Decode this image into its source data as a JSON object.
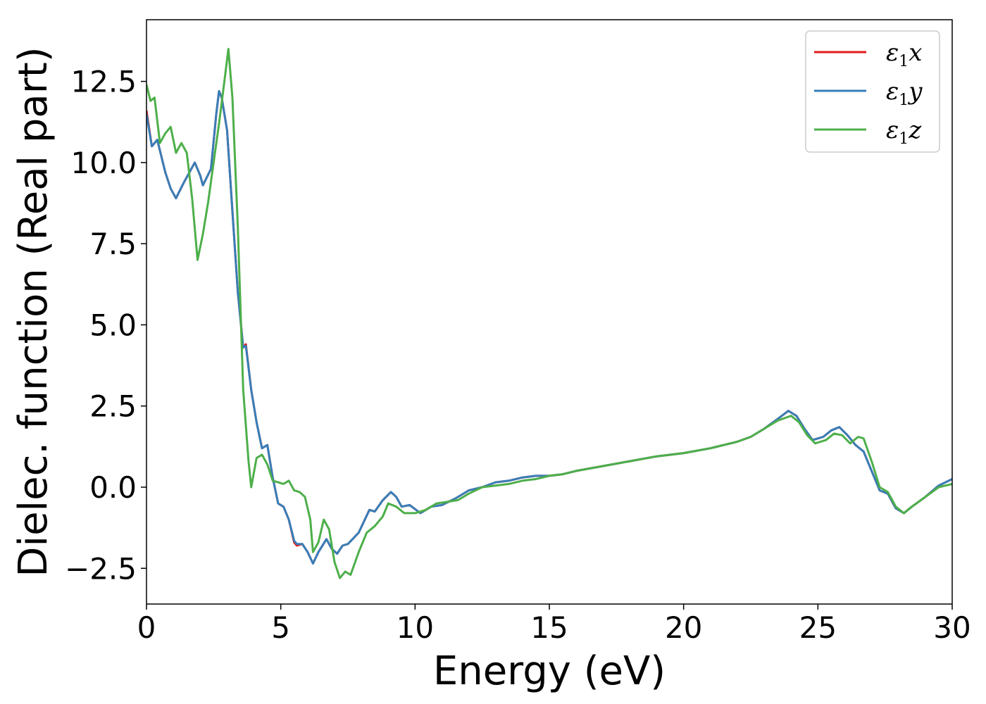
{
  "chart_data": {
    "type": "line",
    "title": "",
    "xlabel": "Energy (eV)",
    "ylabel": "Dielec. function (Real part)",
    "xlim": [
      0,
      30
    ],
    "ylim": [
      -3.6,
      14.4
    ],
    "xticks": [
      0,
      5,
      10,
      15,
      20,
      25,
      30
    ],
    "xtick_labels": [
      "0",
      "5",
      "10",
      "15",
      "20",
      "25",
      "30"
    ],
    "yticks": [
      -2.5,
      0.0,
      2.5,
      5.0,
      7.5,
      10.0,
      12.5
    ],
    "ytick_labels": [
      "−2.5",
      "0.0",
      "2.5",
      "5.0",
      "7.5",
      "10.0",
      "12.5"
    ],
    "grid": false,
    "legend_position": "top-right",
    "series": [
      {
        "name": "x",
        "color": "#e41a1c",
        "points": [
          [
            0,
            11.6
          ],
          [
            0.2,
            10.5
          ],
          [
            0.4,
            10.7
          ],
          [
            0.7,
            9.7
          ],
          [
            0.9,
            9.2
          ],
          [
            1.1,
            8.9
          ],
          [
            1.4,
            9.4
          ],
          [
            1.8,
            10.0
          ],
          [
            2.0,
            9.6
          ],
          [
            2.1,
            9.3
          ],
          [
            2.4,
            9.8
          ],
          [
            2.6,
            11.5
          ],
          [
            2.7,
            12.2
          ],
          [
            2.8,
            12.0
          ],
          [
            3.0,
            11.0
          ],
          [
            3.2,
            8.5
          ],
          [
            3.4,
            6.0
          ],
          [
            3.6,
            4.3
          ],
          [
            3.7,
            4.4
          ],
          [
            3.9,
            3.0
          ],
          [
            4.1,
            2.0
          ],
          [
            4.3,
            1.2
          ],
          [
            4.5,
            1.3
          ],
          [
            4.7,
            0.3
          ],
          [
            4.9,
            -0.5
          ],
          [
            5.1,
            -0.6
          ],
          [
            5.3,
            -1.0
          ],
          [
            5.5,
            -1.7
          ],
          [
            5.6,
            -1.8
          ],
          [
            5.8,
            -1.75
          ],
          [
            6.0,
            -2.0
          ],
          [
            6.2,
            -2.35
          ],
          [
            6.4,
            -2.0
          ],
          [
            6.7,
            -1.6
          ],
          [
            6.9,
            -1.9
          ],
          [
            7.1,
            -2.05
          ],
          [
            7.3,
            -1.8
          ],
          [
            7.5,
            -1.75
          ],
          [
            7.9,
            -1.4
          ],
          [
            8.3,
            -0.7
          ],
          [
            8.5,
            -0.75
          ],
          [
            8.8,
            -0.4
          ],
          [
            9.1,
            -0.15
          ],
          [
            9.3,
            -0.3
          ],
          [
            9.5,
            -0.6
          ],
          [
            9.8,
            -0.55
          ],
          [
            10.2,
            -0.8
          ],
          [
            10.6,
            -0.6
          ],
          [
            11.0,
            -0.55
          ],
          [
            11.5,
            -0.35
          ],
          [
            12.0,
            -0.1
          ],
          [
            12.5,
            0.0
          ],
          [
            13.0,
            0.15
          ],
          [
            13.5,
            0.2
          ],
          [
            14.0,
            0.3
          ],
          [
            14.5,
            0.35
          ],
          [
            15.0,
            0.35
          ],
          [
            15.5,
            0.4
          ],
          [
            16.0,
            0.5
          ],
          [
            17.0,
            0.65
          ],
          [
            18.0,
            0.8
          ],
          [
            19.0,
            0.95
          ],
          [
            20.0,
            1.05
          ],
          [
            21.0,
            1.2
          ],
          [
            22.0,
            1.4
          ],
          [
            22.5,
            1.55
          ],
          [
            23.0,
            1.8
          ],
          [
            23.5,
            2.1
          ],
          [
            23.9,
            2.35
          ],
          [
            24.2,
            2.2
          ],
          [
            24.5,
            1.8
          ],
          [
            24.8,
            1.45
          ],
          [
            25.2,
            1.55
          ],
          [
            25.5,
            1.75
          ],
          [
            25.8,
            1.85
          ],
          [
            26.1,
            1.6
          ],
          [
            26.4,
            1.3
          ],
          [
            26.7,
            1.1
          ],
          [
            27.0,
            0.5
          ],
          [
            27.3,
            -0.1
          ],
          [
            27.6,
            -0.2
          ],
          [
            27.9,
            -0.65
          ],
          [
            28.2,
            -0.8
          ],
          [
            28.5,
            -0.6
          ],
          [
            29.0,
            -0.3
          ],
          [
            29.5,
            0.05
          ],
          [
            30.0,
            0.25
          ]
        ]
      },
      {
        "name": "y",
        "color": "#377eb8",
        "points": [
          [
            0,
            11.5
          ],
          [
            0.2,
            10.5
          ],
          [
            0.4,
            10.7
          ],
          [
            0.7,
            9.7
          ],
          [
            0.9,
            9.2
          ],
          [
            1.1,
            8.9
          ],
          [
            1.4,
            9.4
          ],
          [
            1.8,
            10.0
          ],
          [
            2.0,
            9.6
          ],
          [
            2.1,
            9.3
          ],
          [
            2.4,
            9.8
          ],
          [
            2.6,
            11.5
          ],
          [
            2.7,
            12.2
          ],
          [
            2.8,
            12.0
          ],
          [
            3.0,
            11.0
          ],
          [
            3.2,
            8.5
          ],
          [
            3.4,
            6.0
          ],
          [
            3.6,
            4.3
          ],
          [
            3.7,
            4.35
          ],
          [
            3.9,
            3.0
          ],
          [
            4.1,
            2.0
          ],
          [
            4.3,
            1.2
          ],
          [
            4.5,
            1.3
          ],
          [
            4.7,
            0.3
          ],
          [
            4.9,
            -0.5
          ],
          [
            5.1,
            -0.6
          ],
          [
            5.3,
            -1.0
          ],
          [
            5.5,
            -1.65
          ],
          [
            5.6,
            -1.75
          ],
          [
            5.8,
            -1.75
          ],
          [
            6.0,
            -2.0
          ],
          [
            6.2,
            -2.35
          ],
          [
            6.4,
            -2.0
          ],
          [
            6.7,
            -1.6
          ],
          [
            6.9,
            -1.9
          ],
          [
            7.1,
            -2.05
          ],
          [
            7.3,
            -1.8
          ],
          [
            7.5,
            -1.75
          ],
          [
            7.9,
            -1.4
          ],
          [
            8.3,
            -0.7
          ],
          [
            8.5,
            -0.75
          ],
          [
            8.8,
            -0.4
          ],
          [
            9.1,
            -0.15
          ],
          [
            9.3,
            -0.3
          ],
          [
            9.5,
            -0.6
          ],
          [
            9.8,
            -0.55
          ],
          [
            10.2,
            -0.8
          ],
          [
            10.6,
            -0.6
          ],
          [
            11.0,
            -0.55
          ],
          [
            11.5,
            -0.35
          ],
          [
            12.0,
            -0.1
          ],
          [
            12.5,
            0.0
          ],
          [
            13.0,
            0.15
          ],
          [
            13.5,
            0.2
          ],
          [
            14.0,
            0.3
          ],
          [
            14.5,
            0.35
          ],
          [
            15.0,
            0.35
          ],
          [
            15.5,
            0.4
          ],
          [
            16.0,
            0.5
          ],
          [
            17.0,
            0.65
          ],
          [
            18.0,
            0.8
          ],
          [
            19.0,
            0.95
          ],
          [
            20.0,
            1.05
          ],
          [
            21.0,
            1.2
          ],
          [
            22.0,
            1.4
          ],
          [
            22.5,
            1.55
          ],
          [
            23.0,
            1.8
          ],
          [
            23.5,
            2.1
          ],
          [
            23.9,
            2.35
          ],
          [
            24.2,
            2.2
          ],
          [
            24.5,
            1.8
          ],
          [
            24.8,
            1.45
          ],
          [
            25.2,
            1.55
          ],
          [
            25.5,
            1.75
          ],
          [
            25.8,
            1.85
          ],
          [
            26.1,
            1.6
          ],
          [
            26.4,
            1.3
          ],
          [
            26.7,
            1.1
          ],
          [
            27.0,
            0.5
          ],
          [
            27.3,
            -0.1
          ],
          [
            27.6,
            -0.2
          ],
          [
            27.9,
            -0.65
          ],
          [
            28.2,
            -0.8
          ],
          [
            28.5,
            -0.6
          ],
          [
            29.0,
            -0.3
          ],
          [
            29.5,
            0.05
          ],
          [
            30.0,
            0.25
          ]
        ]
      },
      {
        "name": "z",
        "color": "#4daf4a",
        "points": [
          [
            0,
            12.4
          ],
          [
            0.15,
            11.9
          ],
          [
            0.3,
            12.0
          ],
          [
            0.5,
            10.6
          ],
          [
            0.7,
            10.9
          ],
          [
            0.9,
            11.1
          ],
          [
            1.1,
            10.3
          ],
          [
            1.3,
            10.6
          ],
          [
            1.5,
            10.3
          ],
          [
            1.7,
            8.9
          ],
          [
            1.9,
            7.0
          ],
          [
            2.1,
            7.8
          ],
          [
            2.3,
            8.8
          ],
          [
            2.5,
            10.0
          ],
          [
            2.7,
            11.2
          ],
          [
            2.9,
            12.5
          ],
          [
            3.05,
            13.5
          ],
          [
            3.2,
            12.0
          ],
          [
            3.4,
            8.0
          ],
          [
            3.6,
            3.0
          ],
          [
            3.8,
            0.8
          ],
          [
            3.9,
            0.0
          ],
          [
            4.1,
            0.9
          ],
          [
            4.3,
            1.0
          ],
          [
            4.5,
            0.7
          ],
          [
            4.7,
            0.2
          ],
          [
            4.9,
            0.15
          ],
          [
            5.1,
            0.1
          ],
          [
            5.3,
            0.2
          ],
          [
            5.5,
            -0.1
          ],
          [
            5.7,
            -0.15
          ],
          [
            5.9,
            -0.3
          ],
          [
            6.1,
            -1.0
          ],
          [
            6.2,
            -2.0
          ],
          [
            6.4,
            -1.7
          ],
          [
            6.6,
            -1.0
          ],
          [
            6.8,
            -1.3
          ],
          [
            7.0,
            -2.3
          ],
          [
            7.2,
            -2.8
          ],
          [
            7.4,
            -2.6
          ],
          [
            7.6,
            -2.7
          ],
          [
            7.9,
            -2.0
          ],
          [
            8.2,
            -1.4
          ],
          [
            8.5,
            -1.2
          ],
          [
            8.8,
            -0.9
          ],
          [
            9.0,
            -0.5
          ],
          [
            9.3,
            -0.6
          ],
          [
            9.6,
            -0.8
          ],
          [
            10.0,
            -0.8
          ],
          [
            10.4,
            -0.7
          ],
          [
            10.8,
            -0.5
          ],
          [
            11.2,
            -0.45
          ],
          [
            11.6,
            -0.4
          ],
          [
            12.0,
            -0.2
          ],
          [
            12.5,
            0.0
          ],
          [
            13.0,
            0.05
          ],
          [
            13.5,
            0.1
          ],
          [
            14.0,
            0.2
          ],
          [
            14.5,
            0.25
          ],
          [
            15.0,
            0.35
          ],
          [
            15.5,
            0.4
          ],
          [
            16.0,
            0.5
          ],
          [
            17.0,
            0.65
          ],
          [
            18.0,
            0.8
          ],
          [
            19.0,
            0.95
          ],
          [
            20.0,
            1.05
          ],
          [
            21.0,
            1.2
          ],
          [
            22.0,
            1.4
          ],
          [
            22.5,
            1.55
          ],
          [
            23.0,
            1.8
          ],
          [
            23.5,
            2.05
          ],
          [
            24.0,
            2.2
          ],
          [
            24.3,
            2.0
          ],
          [
            24.6,
            1.6
          ],
          [
            24.9,
            1.35
          ],
          [
            25.3,
            1.45
          ],
          [
            25.6,
            1.65
          ],
          [
            25.9,
            1.6
          ],
          [
            26.2,
            1.35
          ],
          [
            26.5,
            1.55
          ],
          [
            26.7,
            1.5
          ],
          [
            27.0,
            0.8
          ],
          [
            27.3,
            0.0
          ],
          [
            27.6,
            -0.15
          ],
          [
            27.9,
            -0.6
          ],
          [
            28.2,
            -0.8
          ],
          [
            28.5,
            -0.6
          ],
          [
            29.0,
            -0.3
          ],
          [
            29.5,
            0.0
          ],
          [
            30.0,
            0.1
          ]
        ]
      }
    ]
  }
}
